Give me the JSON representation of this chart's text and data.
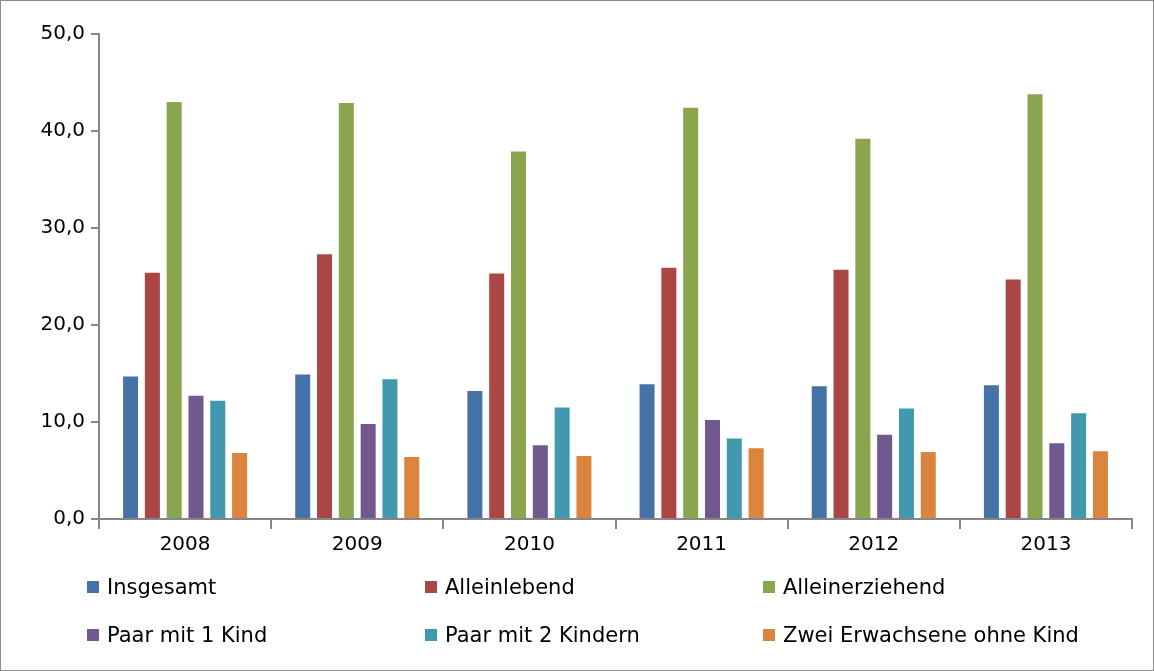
{
  "chart_data": {
    "type": "bar",
    "categories": [
      "2008",
      "2009",
      "2010",
      "2011",
      "2012",
      "2013"
    ],
    "series": [
      {
        "name": "Insgesamt",
        "color": "#4572a7",
        "values": [
          14.8,
          15.0,
          13.3,
          14.0,
          13.8,
          13.9
        ]
      },
      {
        "name": "Alleinlebend",
        "color": "#aa4643",
        "values": [
          25.5,
          27.4,
          25.4,
          26.0,
          25.8,
          24.8
        ]
      },
      {
        "name": "Alleinerziehend",
        "color": "#89a54e",
        "values": [
          43.1,
          43.0,
          38.0,
          42.5,
          39.3,
          43.9
        ]
      },
      {
        "name": "Paar mit 1 Kind",
        "color": "#71588f",
        "values": [
          12.8,
          9.9,
          7.7,
          10.3,
          8.8,
          7.9
        ]
      },
      {
        "name": "Paar mit 2 Kindern",
        "color": "#4198af",
        "values": [
          12.3,
          14.5,
          11.6,
          8.4,
          11.5,
          11.0
        ]
      },
      {
        "name": "Zwei Erwachsene ohne Kind",
        "color": "#db843d",
        "values": [
          6.9,
          6.5,
          6.6,
          7.4,
          7.0,
          7.1
        ]
      }
    ],
    "ylim": [
      0,
      50
    ],
    "yticks": [
      {
        "value": 0,
        "label": "0,0"
      },
      {
        "value": 10,
        "label": "10,0"
      },
      {
        "value": 20,
        "label": "20,0"
      },
      {
        "value": 30,
        "label": "30,0"
      },
      {
        "value": 40,
        "label": "40,0"
      },
      {
        "value": 50,
        "label": "50,0"
      }
    ],
    "grid": false,
    "legend": "bottom"
  }
}
